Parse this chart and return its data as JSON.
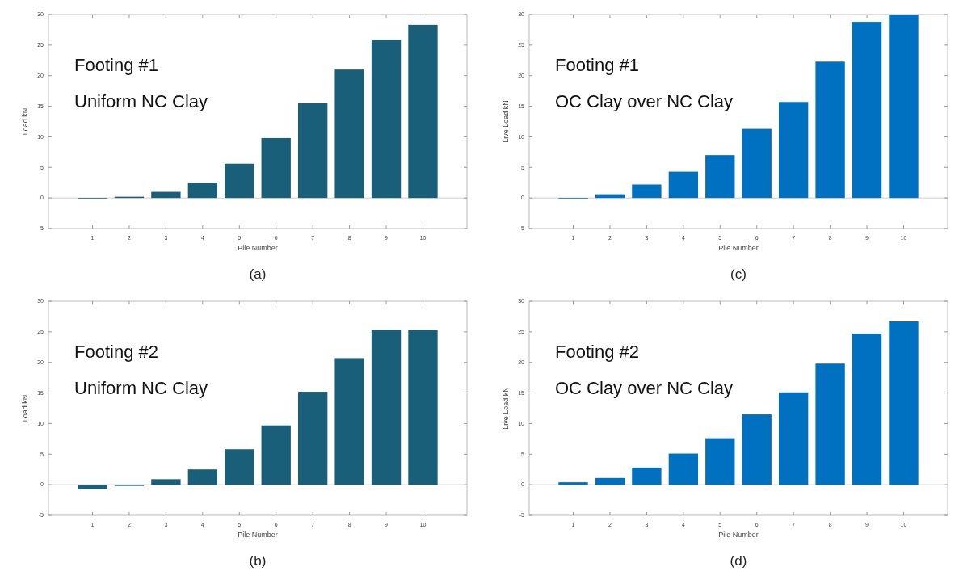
{
  "chart_data": [
    {
      "type": "bar",
      "xlabel": "Pile Number",
      "ylabel": "Load kN",
      "categories": [
        "1",
        "2",
        "3",
        "4",
        "5",
        "6",
        "7",
        "8",
        "9",
        "10"
      ],
      "values": [
        -0.1,
        0.2,
        1.0,
        2.5,
        5.6,
        9.8,
        15.5,
        21.0,
        25.9,
        28.3
      ],
      "color": "#1a5f7a",
      "ylim": [
        -5,
        30
      ],
      "yticks": [
        -5,
        0,
        5,
        10,
        15,
        20,
        25,
        30
      ],
      "annotations": [
        "Footing #1",
        "Uniform NC Clay",
        "(a)"
      ]
    },
    {
      "type": "bar",
      "xlabel": "Pile Number",
      "ylabel": "Live Load kN",
      "categories": [
        "1",
        "2",
        "3",
        "4",
        "5",
        "6",
        "7",
        "8",
        "9",
        "10"
      ],
      "values": [
        -0.1,
        0.6,
        2.2,
        4.3,
        7.0,
        11.3,
        15.7,
        22.3,
        28.8,
        30
      ],
      "color": "#0070c0",
      "ylim": [
        -5,
        30
      ],
      "yticks": [
        -5,
        0,
        5,
        10,
        15,
        20,
        25,
        30
      ],
      "annotations": [
        "Footing #1",
        "OC Clay over NC Clay",
        "(c)"
      ]
    },
    {
      "type": "bar",
      "xlabel": "Pile Number",
      "ylabel": "Load kN",
      "categories": [
        "1",
        "2",
        "3",
        "4",
        "5",
        "6",
        "7",
        "8",
        "9",
        "10"
      ],
      "values": [
        -0.7,
        -0.2,
        0.9,
        2.5,
        5.8,
        9.7,
        15.2,
        20.7,
        25.3,
        25.3
      ],
      "color": "#1a5f7a",
      "ylim": [
        -5,
        30
      ],
      "yticks": [
        -5,
        0,
        5,
        10,
        15,
        20,
        25,
        30
      ],
      "annotations": [
        "Footing #2",
        "Uniform NC Clay",
        "(b)"
      ]
    },
    {
      "type": "bar",
      "xlabel": "Pile Number",
      "ylabel": "Live Load kN",
      "categories": [
        "1",
        "2",
        "3",
        "4",
        "5",
        "6",
        "7",
        "8",
        "9",
        "10"
      ],
      "values": [
        0.4,
        1.1,
        2.8,
        5.1,
        7.6,
        11.5,
        15.1,
        19.8,
        24.7,
        26.7
      ],
      "color": "#0070c0",
      "ylim": [
        -5,
        30
      ],
      "yticks": [
        -5,
        0,
        5,
        10,
        15,
        20,
        25,
        30
      ],
      "annotations": [
        "Footing #2",
        "OC Clay over NC Clay",
        "(d)"
      ]
    }
  ]
}
